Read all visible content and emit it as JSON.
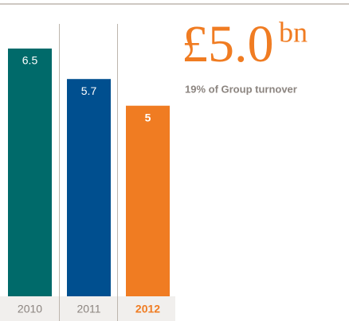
{
  "chart_data": {
    "type": "bar",
    "categories": [
      "2010",
      "2011",
      "2012"
    ],
    "values": [
      6.5,
      5.7,
      5.0
    ],
    "colors": [
      "#006a6a",
      "#004f8f",
      "#f07c22"
    ],
    "highlight": "2012",
    "ylim": [
      0,
      7
    ],
    "annotation": {
      "figure": "£5.0",
      "unit": "bn",
      "text": "19% of Group turnover"
    }
  }
}
